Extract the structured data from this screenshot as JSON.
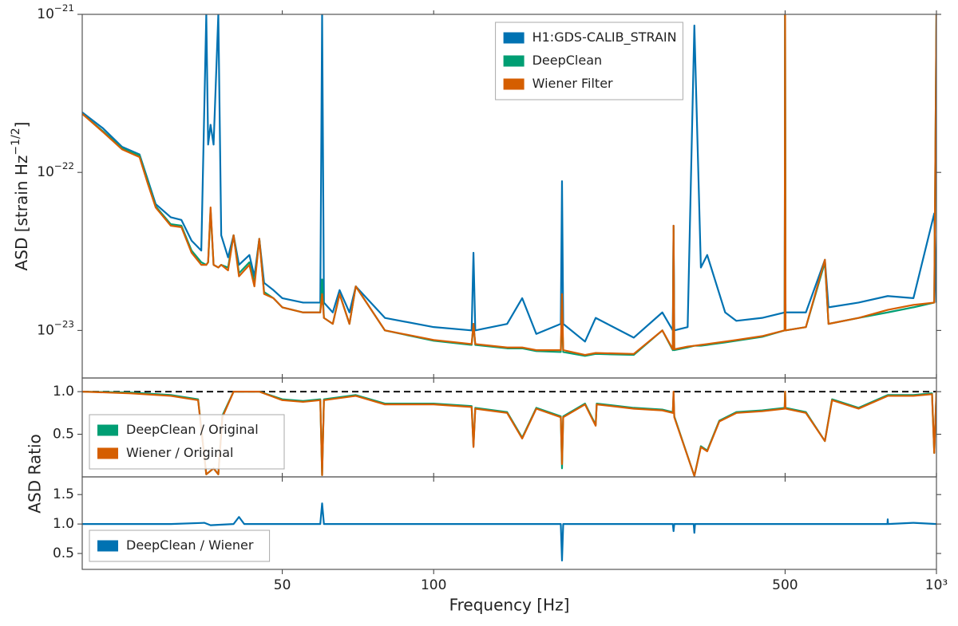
{
  "chart_data": [
    {
      "type": "line",
      "log_x": true,
      "log_y": true,
      "legend": "upper center",
      "ylabel": "ASD [strain Hz−1/2]",
      "xlim": [
        20,
        1000
      ],
      "ylim": [
        5e-24,
        1e-21
      ],
      "yticks": [
        {
          "value": 1e-21,
          "label": "10−21"
        },
        {
          "value": 1e-22,
          "label": "10−22"
        },
        {
          "value": 1e-23,
          "label": "10−23"
        }
      ],
      "x": [
        20,
        22,
        24,
        26,
        27,
        28,
        30,
        31.5,
        33,
        34.5,
        35.3,
        35.6,
        36,
        36.5,
        37.3,
        37.8,
        39,
        40,
        41,
        43,
        44,
        45,
        46,
        48,
        50,
        55,
        59.5,
        60,
        60.5,
        63,
        65,
        68,
        70,
        80,
        100,
        119,
        120,
        121,
        140,
        150,
        160,
        179,
        180,
        181,
        200,
        210,
        250,
        285,
        299,
        300,
        301,
        320,
        330,
        340,
        350,
        380,
        400,
        450,
        499,
        500,
        501,
        550,
        600,
        610,
        700,
        800,
        900,
        990,
        1000
      ],
      "series": [
        {
          "name": "H1:GDS-CALIB_STRAIN",
          "color": "#0072b2",
          "values": [
            2.4e-22,
            1.9e-22,
            1.45e-22,
            1.3e-22,
            9e-23,
            6.3e-23,
            5.2e-23,
            5e-23,
            3.7e-23,
            3.2e-23,
            1e-21,
            1.5e-22,
            2e-22,
            1.5e-22,
            1e-21,
            4e-23,
            2.9e-23,
            4e-23,
            2.6e-23,
            3e-23,
            2.2e-23,
            3.8e-23,
            2e-23,
            1.8e-23,
            1.6e-23,
            1.5e-23,
            1.5e-23,
            1e-21,
            1.5e-23,
            1.3e-23,
            1.8e-23,
            1.3e-23,
            1.9e-23,
            1.2e-23,
            1.05e-23,
            1e-23,
            3.1e-23,
            1e-23,
            1.1e-23,
            1.6e-23,
            9.5e-24,
            1.1e-23,
            8.8e-23,
            1.1e-23,
            8.5e-24,
            1.2e-23,
            9e-24,
            1.3e-23,
            1e-23,
            4.6e-23,
            1e-23,
            1.05e-23,
            8.5e-22,
            2.5e-23,
            3e-23,
            1.3e-23,
            1.15e-23,
            1.2e-23,
            1.3e-23,
            1e-21,
            1.3e-23,
            1.3e-23,
            2.8e-23,
            1.4e-23,
            1.5e-23,
            1.65e-23,
            1.6e-23,
            5.5e-23,
            1.5e-23
          ]
        },
        {
          "name": "DeepClean",
          "color": "#009e73",
          "values": [
            2.35e-22,
            1.82e-22,
            1.42e-22,
            1.28e-22,
            8.8e-23,
            6.1e-23,
            4.7e-23,
            4.6e-23,
            3.2e-23,
            2.7e-23,
            2.6e-23,
            2.7e-23,
            5.8e-23,
            2.6e-23,
            2.5e-23,
            2.6e-23,
            2.5e-23,
            4e-23,
            2.3e-23,
            2.7e-23,
            2e-23,
            3.8e-23,
            1.75e-23,
            1.6e-23,
            1.4e-23,
            1.3e-23,
            1.3e-23,
            2.1e-23,
            1.2e-23,
            1.1e-23,
            1.7e-23,
            1.1e-23,
            1.9e-23,
            1e-23,
            8.6e-24,
            8.1e-24,
            1.1e-23,
            8.1e-24,
            7.7e-24,
            7.7e-24,
            7.4e-24,
            7.3e-24,
            1.3e-23,
            7.3e-24,
            6.9e-24,
            7.1e-24,
            7e-24,
            1e-23,
            7.5e-24,
            4.4e-23,
            7.5e-24,
            7.8e-24,
            8e-24,
            8e-24,
            8.1e-24,
            8.4e-24,
            8.6e-24,
            9.1e-24,
            1e-23,
            1e-21,
            1e-23,
            1.05e-23,
            2.7e-23,
            1.1e-23,
            1.2e-23,
            1.3e-23,
            1.4e-23,
            1.5e-23,
            1e-21
          ]
        },
        {
          "name": "Wiener Filter",
          "color": "#d55e00",
          "values": [
            2.35e-22,
            1.8e-22,
            1.4e-22,
            1.25e-22,
            8.5e-23,
            6e-23,
            4.6e-23,
            4.5e-23,
            3.1e-23,
            2.6e-23,
            2.6e-23,
            2.7e-23,
            6e-23,
            2.6e-23,
            2.5e-23,
            2.6e-23,
            2.4e-23,
            4e-23,
            2.2e-23,
            2.6e-23,
            1.9e-23,
            3.8e-23,
            1.7e-23,
            1.6e-23,
            1.4e-23,
            1.3e-23,
            1.3e-23,
            1.7e-23,
            1.2e-23,
            1.1e-23,
            1.7e-23,
            1.1e-23,
            1.9e-23,
            1e-23,
            8.7e-24,
            8.2e-24,
            1.1e-23,
            8.2e-24,
            7.8e-24,
            7.8e-24,
            7.5e-24,
            7.5e-24,
            1.7e-23,
            7.5e-24,
            7e-24,
            7.2e-24,
            7.1e-24,
            1e-23,
            7.6e-24,
            4.6e-23,
            7.6e-24,
            7.9e-24,
            8e-24,
            8.1e-24,
            8.2e-24,
            8.5e-24,
            8.7e-24,
            9.2e-24,
            1e-23,
            1e-21,
            1e-23,
            1.05e-23,
            2.8e-23,
            1.1e-23,
            1.2e-23,
            1.35e-23,
            1.45e-23,
            1.5e-23,
            1e-21
          ]
        }
      ]
    },
    {
      "type": "line",
      "log_x": true,
      "legend": "lower left",
      "ylabel": "ASD Ratio",
      "hline": 1,
      "xlim": [
        20,
        1000
      ],
      "ylim": [
        0,
        1.16
      ],
      "yticks": [
        0.5,
        {
          "value": 1,
          "label": "1.0"
        }
      ],
      "x": [
        20,
        25,
        30,
        34,
        35.3,
        36.5,
        37.3,
        38,
        40,
        45,
        50,
        55,
        59.5,
        60,
        60.5,
        70,
        80,
        100,
        119,
        120,
        121,
        140,
        150,
        160,
        179,
        180,
        181,
        200,
        210,
        211,
        250,
        285,
        299,
        300,
        301,
        330,
        340,
        350,
        370,
        400,
        450,
        499,
        500,
        501,
        550,
        600,
        620,
        700,
        800,
        900,
        980,
        990,
        1000
      ],
      "series": [
        {
          "name": "DeepClean / Original",
          "color": "#009e73",
          "values": [
            1.0,
            0.99,
            0.96,
            0.91,
            0.03,
            0.1,
            0.03,
            0.72,
            1.0,
            1.0,
            0.91,
            0.89,
            0.91,
            0.02,
            0.91,
            0.96,
            0.86,
            0.86,
            0.83,
            0.36,
            0.81,
            0.76,
            0.46,
            0.81,
            0.71,
            0.1,
            0.71,
            0.86,
            0.61,
            0.86,
            0.81,
            0.79,
            0.76,
            0.97,
            0.71,
            0.01,
            0.36,
            0.31,
            0.66,
            0.76,
            0.78,
            0.81,
            1.0,
            0.81,
            0.76,
            0.42,
            0.91,
            0.81,
            0.96,
            0.96,
            0.98,
            0.28,
            1.0
          ]
        },
        {
          "name": "Wiener / Original",
          "color": "#d55e00",
          "values": [
            1.0,
            0.98,
            0.95,
            0.9,
            0.03,
            0.1,
            0.03,
            0.7,
            1.0,
            1.0,
            0.9,
            0.88,
            0.9,
            0.02,
            0.9,
            0.95,
            0.85,
            0.85,
            0.82,
            0.35,
            0.8,
            0.75,
            0.45,
            0.8,
            0.7,
            0.15,
            0.7,
            0.85,
            0.6,
            0.85,
            0.8,
            0.78,
            0.75,
            1.0,
            0.7,
            0.01,
            0.35,
            0.3,
            0.65,
            0.75,
            0.77,
            0.8,
            1.0,
            0.8,
            0.75,
            0.42,
            0.9,
            0.8,
            0.95,
            0.95,
            0.97,
            0.28,
            1.0
          ]
        }
      ]
    },
    {
      "type": "line",
      "log_x": true,
      "legend": "lower left",
      "xlabel": "Frequency [Hz]",
      "xlim": [
        20,
        1000
      ],
      "ylim": [
        0.23,
        1.8
      ],
      "xticks": [
        50,
        100,
        500,
        {
          "value": 1000,
          "label": "10³"
        }
      ],
      "yticks": [
        0.5,
        {
          "value": 1,
          "label": "1.0"
        },
        1.5
      ],
      "x": [
        20,
        30,
        35,
        36,
        40,
        41,
        42,
        45,
        50,
        59.5,
        60,
        60.5,
        100,
        179,
        180,
        181,
        299,
        300,
        301,
        329,
        330,
        331,
        500,
        799,
        800,
        801,
        900,
        1000
      ],
      "series": [
        {
          "name": "DeepClean / Wiener",
          "color": "#0072b2",
          "values": [
            1.0,
            1.0,
            1.02,
            0.98,
            1.0,
            1.12,
            1.0,
            1.0,
            1.0,
            1.0,
            1.35,
            1.0,
            1.0,
            1.0,
            0.38,
            1.0,
            1.0,
            0.88,
            1.0,
            1.0,
            0.85,
            1.0,
            1.0,
            1.0,
            1.08,
            1.0,
            1.02,
            1.0
          ]
        }
      ]
    }
  ]
}
